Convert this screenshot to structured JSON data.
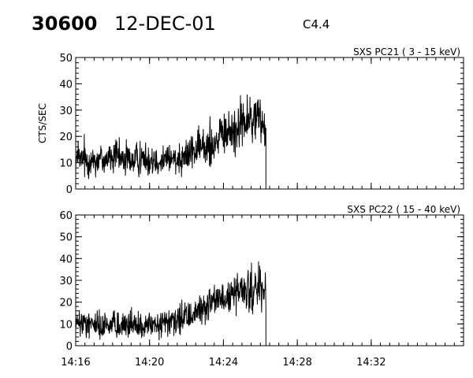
{
  "header": {
    "event_id": "30600",
    "date": "12-DEC-01",
    "flare_class": "C4.4"
  },
  "chart_data": [
    {
      "type": "line",
      "title": "SXS PC21  (  3 - 15 keV)",
      "ylabel": "CTS/SEC",
      "xlabel": "",
      "xlim": [
        "14:16",
        "14:37"
      ],
      "ylim": [
        0,
        50
      ],
      "yticks": [
        0,
        10,
        20,
        30,
        40,
        50
      ],
      "xticks": [
        "14:16",
        "14:20",
        "14:24",
        "14:28",
        "14:32"
      ],
      "grid": false,
      "series": [
        {
          "x": [
            "14:16",
            "14:17",
            "14:18",
            "14:19",
            "14:20",
            "14:21",
            "14:22",
            "14:23",
            "14:24",
            "14:25",
            "14:26",
            "14:26.3"
          ],
          "values": [
            11,
            11,
            12,
            11,
            12,
            11,
            13,
            16,
            20,
            25,
            27,
            23
          ]
        }
      ]
    },
    {
      "type": "line",
      "title": "SXS PC22  ( 15 - 40 keV)",
      "ylabel": "",
      "xlabel": "",
      "xlim": [
        "14:16",
        "14:37"
      ],
      "ylim": [
        0,
        60
      ],
      "yticks": [
        0,
        10,
        20,
        30,
        40,
        50,
        60
      ],
      "xticks": [
        "14:16",
        "14:20",
        "14:24",
        "14:28",
        "14:32"
      ],
      "grid": false,
      "series": [
        {
          "x": [
            "14:16",
            "14:17",
            "14:18",
            "14:19",
            "14:20",
            "14:21",
            "14:22",
            "14:23",
            "14:24",
            "14:25",
            "14:26",
            "14:26.3"
          ],
          "values": [
            10,
            10,
            10,
            9,
            9,
            10,
            13,
            18,
            22,
            25,
            26,
            24
          ]
        }
      ]
    }
  ]
}
